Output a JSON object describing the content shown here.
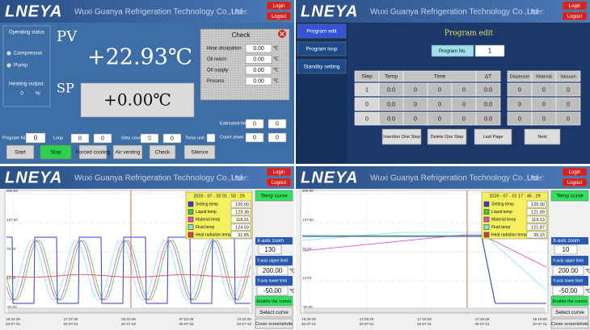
{
  "panels": [
    {
      "header": {
        "logo": "LNEYA",
        "company": "Wuxi Guanya Refrigeration Technology Co.,Ltd",
        "user": "User:",
        "login": "Login",
        "logout": "Logout"
      },
      "status": {
        "title": "Operating status",
        "items": [
          "Compressor",
          "Pump"
        ],
        "heating_label": "Heating output:",
        "heating_value": "0",
        "heating_unit": "%"
      },
      "pv_label": "PV",
      "pv_value": "+22.93℃",
      "sp_label": "SP",
      "sp_value": "+0.00℃",
      "check": {
        "title": "Check",
        "rows": [
          {
            "label": "Heat dissipation",
            "value": "0.00",
            "unit": "℃"
          },
          {
            "label": "Oil return",
            "value": "0.00",
            "unit": "℃"
          },
          {
            "label": "Oil supply",
            "value": "0.00",
            "unit": "℃"
          },
          {
            "label": "Process",
            "value": "0.00",
            "unit": "℃"
          }
        ]
      },
      "program_no": {
        "label": "Program NO.",
        "value": "0"
      },
      "loop": {
        "label": "Loop",
        "values": [
          "0",
          "0"
        ]
      },
      "step_countdown": {
        "label": "Step countdown",
        "values": [
          "0",
          "0"
        ]
      },
      "temp_unit": "Temp unit",
      "estimated_time": {
        "label": "Estimated time",
        "values": [
          "0",
          "0"
        ]
      },
      "count_down": {
        "label": "Count down",
        "values": [
          "0",
          "0"
        ]
      },
      "buttons": [
        "Start",
        "Stop",
        "Forced cooling",
        "Air venting",
        "Check",
        "Silence"
      ]
    },
    {
      "header": {
        "logo": "LNEYA",
        "company": "Wuxi Guanya Refrigeration Technology Co.,Ltd",
        "user": "User:",
        "login": "Login",
        "logout": "Logout"
      },
      "menu": [
        "Program edit",
        "Program loop",
        "Standby setting"
      ],
      "title": "Program edit",
      "program_no": {
        "label": "Program No.",
        "value": "1"
      },
      "table": {
        "headers": [
          "Step",
          "Temp",
          "Time",
          "ΔT"
        ],
        "rows": [
          [
            "1",
            "0.0",
            "0",
            "0",
            "0",
            "0.0"
          ],
          [
            "0",
            "0.0",
            "0",
            "0",
            "0",
            "0.0"
          ],
          [
            "0",
            "0.0",
            "0",
            "0",
            "0",
            "0.0"
          ]
        ]
      },
      "table2": {
        "headers": [
          "Dispenser",
          "Material",
          "Vacuum"
        ],
        "rows": [
          [
            "0",
            "0",
            "0"
          ],
          [
            "0",
            "0",
            "0"
          ],
          [
            "0",
            "0",
            "0"
          ]
        ]
      },
      "buttons": [
        "Insertion One Step",
        "Delete One Step",
        "Last Page",
        "Next"
      ]
    },
    {
      "header": {
        "logo": "LNEYA",
        "company": "Wuxi Guanya Refrigeration Technology Co.,Ltd",
        "user": "User:",
        "login": "Login",
        "logout": "Logout"
      },
      "chart": {
        "yticks": [
          "200.00",
          "137.50",
          "75.00",
          "12.50",
          "-50.00"
        ],
        "xticks": [
          [
            "15:24:29",
            "20-07-01"
          ],
          [
            "17:37:29",
            "20-07-01"
          ],
          [
            "02:22:29",
            "20-07-02"
          ],
          [
            "07:52:29",
            "20-07-02"
          ],
          [
            "13:22:29",
            "20-07-02"
          ]
        ],
        "legend": {
          "time": "2020 - 07 - 02   01 : 50 : 29",
          "rows": [
            {
              "name": "Setting temp",
              "value": "120.00",
              "color": "#3a3adc"
            },
            {
              "name": "Liquid temp",
              "value": "123.38",
              "color": "#3ccc3c"
            },
            {
              "name": "Material temp",
              "value": "118.91",
              "color": "#e04ad0"
            },
            {
              "name": "Fluid temp",
              "value": "124.59",
              "color": "#7ee8e8"
            },
            {
              "name": "Heat radiation temp",
              "value": "31.85",
              "color": "#e03a3a"
            }
          ]
        }
      },
      "controls": {
        "temp_curve": "Temp curve",
        "x_zoom_label": "X-axis zoom",
        "x_zoom": "130",
        "y_upper_label": "Y-axis upper limit",
        "y_upper": "200.00",
        "unit": "℃",
        "y_lower_label": "Y-axis lower limit",
        "y_lower": "-50.00",
        "cursor": "Enable the cursor",
        "select": "Select curve",
        "screenshot": "Cover screenshots"
      }
    },
    {
      "header": {
        "logo": "LNEYA",
        "company": "Wuxi Guanya Refrigeration Technology Co.,Ltd",
        "user": "User:",
        "login": "Login",
        "logout": "Logout"
      },
      "chart": {
        "yticks": [
          "200.00",
          "137.50",
          "75.00",
          "12.50",
          "-50.00"
        ],
        "xticks": [
          [
            "16:29:29",
            "20-07-01"
          ],
          [
            "17:06:29",
            "20-07-01"
          ],
          [
            "17:20:29",
            "20-07-01"
          ],
          [
            "17:45:29",
            "20-07-01"
          ],
          [
            "18:19:29",
            "20-07-01"
          ]
        ],
        "legend": {
          "time": "2020 - 07 - 01   17 : 45 : 29",
          "rows": [
            {
              "name": "Setting temp",
              "value": "120.00",
              "color": "#3a3adc"
            },
            {
              "name": "Liquid temp",
              "value": "121.89",
              "color": "#3ccc3c"
            },
            {
              "name": "Material temp",
              "value": "119.13",
              "color": "#e04ad0"
            },
            {
              "name": "Fluid temp",
              "value": "121.87",
              "color": "#7ee8e8"
            },
            {
              "name": "Heat radiation temp",
              "value": "35.15",
              "color": "#e03a3a"
            }
          ]
        }
      },
      "controls": {
        "temp_curve": "Temp curve",
        "x_zoom_label": "X-axis zoom",
        "x_zoom": "10",
        "y_upper_label": "Y-axis upper limit",
        "y_upper": "200.00",
        "unit": "℃",
        "y_lower_label": "Y-axis lower limit",
        "y_lower": "-50.00",
        "cursor": "Enable the cursor",
        "select": "Select curve",
        "screenshot": "Cover screenshots"
      }
    }
  ]
}
